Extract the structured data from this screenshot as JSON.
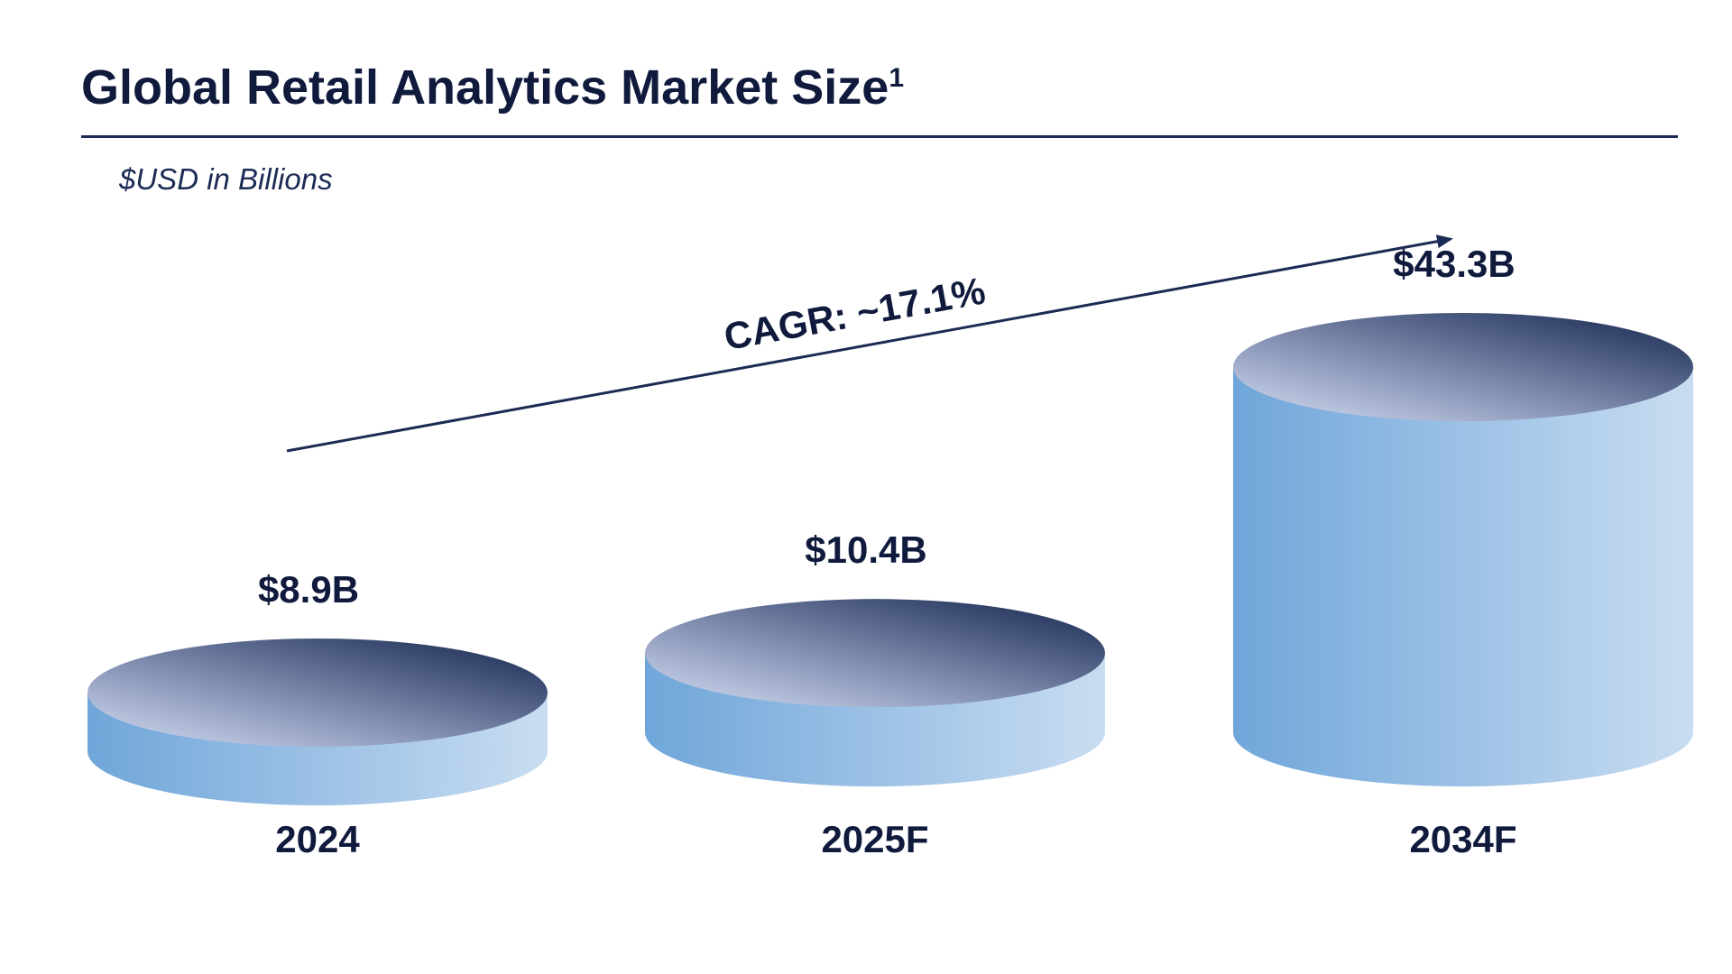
{
  "header": {
    "title": "Global Retail Analytics Market Size",
    "footnote_mark": "1",
    "subtitle": "$USD in Billions"
  },
  "chart_data": {
    "type": "bar",
    "style": "3d-cylinder",
    "categories": [
      "2024",
      "2025F",
      "2034F"
    ],
    "values": [
      8.9,
      10.4,
      43.3
    ],
    "value_labels": [
      "$8.9B",
      "$10.4B",
      "$43.3B"
    ],
    "unit": "$USD in Billions",
    "annotations": [
      {
        "text": "CAGR: ~17.1%",
        "kind": "trend-arrow",
        "from": "2024",
        "to": "2034F"
      }
    ],
    "legend": "none",
    "grid": false,
    "colors": {
      "side_left": "#6fa6d9",
      "side_right": "#c9ddf1",
      "top_light": "#c3cde6",
      "top_dark": "#26365e",
      "text": "#0f1a3c",
      "arrow": "#1c2b55"
    }
  }
}
